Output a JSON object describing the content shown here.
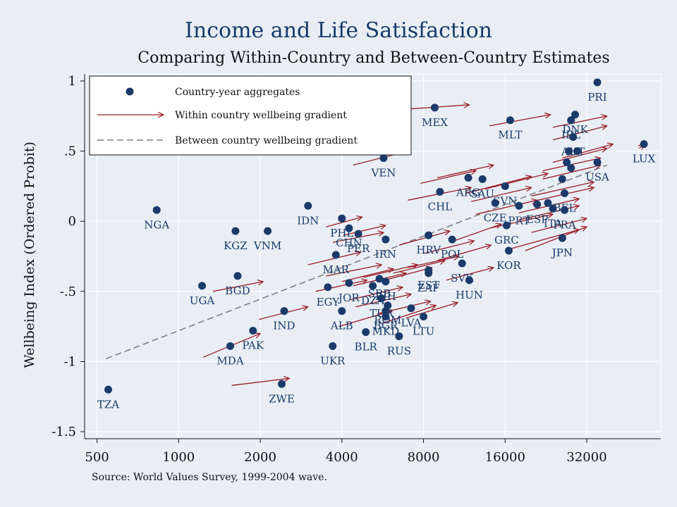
{
  "chart_data": {
    "type": "scatter",
    "title": "Income and Life Satisfaction",
    "subtitle": "Comparing Within-Country and Between-Country Estimates",
    "ylabel": "Wellbeing Index (Ordered Probit)",
    "xlabel": "",
    "x_scale": "log2",
    "xlim": [
      450,
      60000
    ],
    "ylim": [
      -1.55,
      1.05
    ],
    "x_ticks": [
      500,
      1000,
      2000,
      4000,
      8000,
      16000,
      32000
    ],
    "x_tick_labels": [
      "500",
      "1000",
      "2000",
      "4000",
      "8000",
      "16000",
      "32000"
    ],
    "y_ticks": [
      1,
      0.5,
      0,
      -0.5,
      -1,
      -1.5
    ],
    "y_tick_labels": [
      "1",
      ".5",
      "0",
      "-.5",
      "-1",
      "-1.5"
    ],
    "grid": true,
    "source": "Source: World Values Survey, 1999-2004 wave.",
    "colors": {
      "background": "#e8eef4",
      "points": "#1a3a6a",
      "arrows": "#9a1b25",
      "trend": "#7f7f7f",
      "labels": "#1a3a6a"
    },
    "legend": {
      "placement": "top-left",
      "items": [
        {
          "label": "Country-year aggregates",
          "marker": "dot"
        },
        {
          "label": "Within country wellbeing gradient",
          "marker": "arrow"
        },
        {
          "label": "Between country wellbeing gradient",
          "marker": "dashed-line"
        }
      ]
    },
    "between_country_line": {
      "x": [
        540,
        38000
      ],
      "y": [
        -0.98,
        0.4
      ]
    },
    "points": [
      {
        "label": "PRI",
        "x": 35000,
        "y": 0.99
      },
      {
        "label": "LUX",
        "x": 52000,
        "y": 0.55
      },
      {
        "label": "USA",
        "x": 35000,
        "y": 0.42
      },
      {
        "label": "MEX",
        "x": 8800,
        "y": 0.81
      },
      {
        "label": "MLT",
        "x": 16700,
        "y": 0.72
      },
      {
        "label": "DNK",
        "x": 29000,
        "y": 0.76
      },
      {
        "label": "IRL",
        "x": 28000,
        "y": 0.72
      },
      {
        "label": "AUT",
        "x": 28500,
        "y": 0.6
      },
      {
        "label": "",
        "x": 27500,
        "y": 0.5
      },
      {
        "label": "",
        "x": 29500,
        "y": 0.5
      },
      {
        "label": "",
        "x": 27000,
        "y": 0.42
      },
      {
        "label": "",
        "x": 28000,
        "y": 0.38
      },
      {
        "label": "",
        "x": 26000,
        "y": 0.3
      },
      {
        "label": "BEL",
        "x": 26500,
        "y": 0.2
      },
      {
        "label": "",
        "x": 23000,
        "y": 0.13
      },
      {
        "label": "ITA",
        "x": 24000,
        "y": 0.09
      },
      {
        "label": "FRA",
        "x": 26500,
        "y": 0.08
      },
      {
        "label": "JPN",
        "x": 26000,
        "y": -0.12
      },
      {
        "label": "VEN",
        "x": 5700,
        "y": 0.45
      },
      {
        "label": "ARG",
        "x": 11700,
        "y": 0.31
      },
      {
        "label": "SAU",
        "x": 13200,
        "y": 0.3
      },
      {
        "label": "SVN",
        "x": 16000,
        "y": 0.25
      },
      {
        "label": "CHL",
        "x": 9200,
        "y": 0.21
      },
      {
        "label": "CZE",
        "x": 14700,
        "y": 0.13
      },
      {
        "label": "PRT",
        "x": 18000,
        "y": 0.11
      },
      {
        "label": "ESP",
        "x": 21000,
        "y": 0.12
      },
      {
        "label": "GRC",
        "x": 16200,
        "y": -0.03
      },
      {
        "label": "KOR",
        "x": 16500,
        "y": -0.21
      },
      {
        "label": "NGA",
        "x": 830,
        "y": 0.08
      },
      {
        "label": "IDN",
        "x": 3000,
        "y": 0.11
      },
      {
        "label": "PHL",
        "x": 4000,
        "y": 0.02
      },
      {
        "label": "CHN",
        "x": 4250,
        "y": -0.05
      },
      {
        "label": "PER",
        "x": 4600,
        "y": -0.09
      },
      {
        "label": "IRN",
        "x": 5800,
        "y": -0.13
      },
      {
        "label": "KGZ",
        "x": 1620,
        "y": -0.07
      },
      {
        "label": "VNM",
        "x": 2130,
        "y": -0.07
      },
      {
        "label": "MAR",
        "x": 3800,
        "y": -0.24
      },
      {
        "label": "HRV",
        "x": 8350,
        "y": -0.1
      },
      {
        "label": "POL",
        "x": 10200,
        "y": -0.13
      },
      {
        "label": "SVK",
        "x": 11100,
        "y": -0.3
      },
      {
        "label": "EST",
        "x": 8350,
        "y": -0.35
      },
      {
        "label": "ZAF",
        "x": 8350,
        "y": -0.37
      },
      {
        "label": "HUN",
        "x": 11800,
        "y": -0.42
      },
      {
        "label": "BGD",
        "x": 1650,
        "y": -0.39
      },
      {
        "label": "UGA",
        "x": 1220,
        "y": -0.46
      },
      {
        "label": "EGY",
        "x": 3550,
        "y": -0.47
      },
      {
        "label": "JOR",
        "x": 4250,
        "y": -0.44
      },
      {
        "label": "DZA",
        "x": 5200,
        "y": -0.46
      },
      {
        "label": "SRB",
        "x": 5500,
        "y": -0.41
      },
      {
        "label": "BIH",
        "x": 5800,
        "y": -0.43
      },
      {
        "label": "TUR",
        "x": 5600,
        "y": -0.55
      },
      {
        "label": "ROM",
        "x": 5900,
        "y": -0.6
      },
      {
        "label": "ALB",
        "x": 4000,
        "y": -0.64
      },
      {
        "label": "BGR",
        "x": 5800,
        "y": -0.64
      },
      {
        "label": "MKD",
        "x": 5800,
        "y": -0.68
      },
      {
        "label": "LVA",
        "x": 7200,
        "y": -0.62
      },
      {
        "label": "LTU",
        "x": 8000,
        "y": -0.68
      },
      {
        "label": "BLR",
        "x": 4900,
        "y": -0.79
      },
      {
        "label": "RUS",
        "x": 6500,
        "y": -0.82
      },
      {
        "label": "IND",
        "x": 2450,
        "y": -0.64
      },
      {
        "label": "PAK",
        "x": 1880,
        "y": -0.78
      },
      {
        "label": "MDA",
        "x": 1550,
        "y": -0.89
      },
      {
        "label": "UKR",
        "x": 3700,
        "y": -0.89
      },
      {
        "label": "ZWE",
        "x": 2400,
        "y": -1.16
      },
      {
        "label": "TZA",
        "x": 550,
        "y": -1.2
      }
    ],
    "within_country_arrows": [
      {
        "x": [
          50000,
          52000
        ],
        "y": [
          0.52,
          0.55
        ]
      },
      {
        "x": [
          24000,
          38000
        ],
        "y": [
          0.58,
          0.68
        ]
      },
      {
        "x": [
          24000,
          38000
        ],
        "y": [
          0.67,
          0.75
        ]
      },
      {
        "x": [
          26000,
          40000
        ],
        "y": [
          0.45,
          0.55
        ]
      },
      {
        "x": [
          24000,
          38000
        ],
        "y": [
          0.42,
          0.52
        ]
      },
      {
        "x": [
          22000,
          36000
        ],
        "y": [
          0.36,
          0.45
        ]
      },
      {
        "x": [
          22000,
          36000
        ],
        "y": [
          0.3,
          0.4
        ]
      },
      {
        "x": [
          20000,
          34000
        ],
        "y": [
          0.18,
          0.28
        ]
      },
      {
        "x": [
          20000,
          34000
        ],
        "y": [
          0.14,
          0.24
        ]
      },
      {
        "x": [
          18000,
          30000
        ],
        "y": [
          0.06,
          0.16
        ]
      },
      {
        "x": [
          18000,
          30000
        ],
        "y": [
          0.01,
          0.11
        ]
      },
      {
        "x": [
          20000,
          32000
        ],
        "y": [
          -0.08,
          0.02
        ]
      },
      {
        "x": [
          19000,
          32000
        ],
        "y": [
          -0.21,
          -0.04
        ]
      },
      {
        "x": [
          16500,
          30000
        ],
        "y": [
          -0.2,
          -0.06
        ]
      },
      {
        "x": [
          14000,
          24000
        ],
        "y": [
          -0.05,
          0.05
        ]
      },
      {
        "x": [
          12500,
          21000
        ],
        "y": [
          0.05,
          0.15
        ]
      },
      {
        "x": [
          12000,
          20000
        ],
        "y": [
          0.14,
          0.24
        ]
      },
      {
        "x": [
          11500,
          20000
        ],
        "y": [
          0.2,
          0.32
        ]
      },
      {
        "x": [
          13500,
          23000
        ],
        "y": [
          0.23,
          0.34
        ]
      },
      {
        "x": [
          7000,
          12000
        ],
        "y": [
          0.15,
          0.24
        ]
      },
      {
        "x": [
          7800,
          12500
        ],
        "y": [
          0.27,
          0.36
        ]
      },
      {
        "x": [
          9000,
          14500
        ],
        "y": [
          0.31,
          0.4
        ]
      },
      {
        "x": [
          14000,
          23500
        ],
        "y": [
          0.68,
          0.76
        ]
      },
      {
        "x": [
          7000,
          11800
        ],
        "y": [
          0.8,
          0.83
        ]
      },
      {
        "x": [
          4400,
          7000
        ],
        "y": [
          0.4,
          0.5
        ]
      },
      {
        "x": [
          6500,
          10000
        ],
        "y": [
          -0.17,
          -0.07
        ]
      },
      {
        "x": [
          8000,
          12300
        ],
        "y": [
          -0.23,
          -0.14
        ]
      },
      {
        "x": [
          10000,
          15500
        ],
        "y": [
          -0.15,
          -0.02
        ]
      },
      {
        "x": [
          9000,
          14200
        ],
        "y": [
          -0.28,
          -0.17
        ]
      },
      {
        "x": [
          9700,
          14500
        ],
        "y": [
          -0.42,
          -0.33
        ]
      },
      {
        "x": [
          7000,
          10800
        ],
        "y": [
          -0.33,
          -0.25
        ]
      },
      {
        "x": [
          6200,
          9600
        ],
        "y": [
          -0.37,
          -0.28
        ]
      },
      {
        "x": [
          5500,
          8600
        ],
        "y": [
          -0.43,
          -0.33
        ]
      },
      {
        "x": [
          4800,
          7600
        ],
        "y": [
          -0.4,
          -0.31
        ]
      },
      {
        "x": [
          4400,
          6900
        ],
        "y": [
          -0.46,
          -0.37
        ]
      },
      {
        "x": [
          4000,
          6200
        ],
        "y": [
          -0.43,
          -0.34
        ]
      },
      {
        "x": [
          3500,
          5600
        ],
        "y": [
          -0.39,
          -0.31
        ]
      },
      {
        "x": [
          3000,
          4700
        ],
        "y": [
          -0.31,
          -0.22
        ]
      },
      {
        "x": [
          3700,
          5700
        ],
        "y": [
          -0.15,
          -0.08
        ]
      },
      {
        "x": [
          4050,
          5800
        ],
        "y": [
          -0.1,
          -0.03
        ]
      },
      {
        "x": [
          3500,
          4750
        ],
        "y": [
          -0.04,
          0.03
        ]
      },
      {
        "x": [
          3200,
          4950
        ],
        "y": [
          -0.5,
          -0.42
        ]
      },
      {
        "x": [
          4300,
          6700
        ],
        "y": [
          -0.56,
          -0.47
        ]
      },
      {
        "x": [
          4500,
          7200
        ],
        "y": [
          -0.61,
          -0.52
        ]
      },
      {
        "x": [
          5400,
          8500
        ],
        "y": [
          -0.66,
          -0.57
        ]
      },
      {
        "x": [
          3900,
          6100
        ],
        "y": [
          -0.75,
          -0.64
        ]
      },
      {
        "x": [
          5600,
          8900
        ],
        "y": [
          -0.73,
          -0.6
        ]
      },
      {
        "x": [
          6900,
          10700
        ],
        "y": [
          -0.69,
          -0.58
        ]
      },
      {
        "x": [
          1980,
          3000
        ],
        "y": [
          -0.7,
          -0.61
        ]
      },
      {
        "x": [
          1340,
          2050
        ],
        "y": [
          -0.5,
          -0.43
        ]
      },
      {
        "x": [
          1230,
          2000
        ],
        "y": [
          -0.97,
          -0.8
        ]
      },
      {
        "x": [
          1570,
          2560
        ],
        "y": [
          -1.17,
          -1.12
        ]
      }
    ]
  }
}
